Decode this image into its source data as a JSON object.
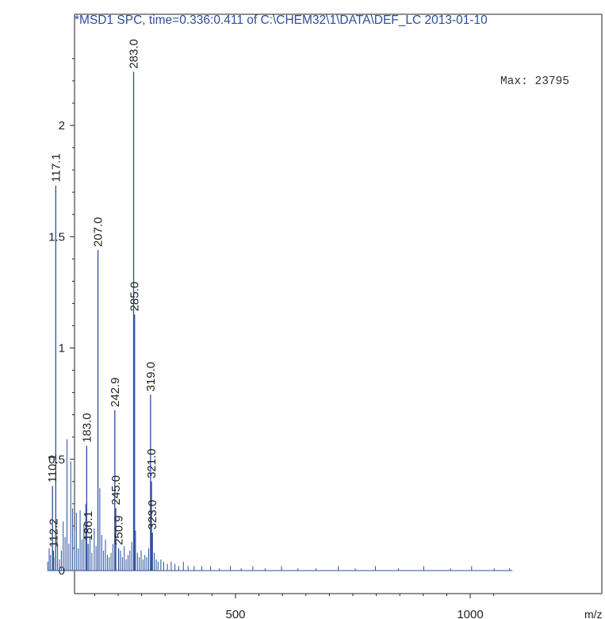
{
  "chart_data": {
    "type": "bar",
    "title": "*MSD1 SPC, time=0.336:0.411 of C:\\CHEM32\\1\\DATA\\DEF_LC 2013-01-10",
    "xlabel": "m/z",
    "ylabel": "",
    "max_label": "Max: 23795",
    "xlim": [
      0,
      1100
    ],
    "ylim": [
      -0.05,
      2.4
    ],
    "x_ticks": [
      500,
      1000
    ],
    "y_ticks": [
      0,
      0.5,
      1,
      1.5,
      2
    ],
    "grid": false,
    "colors": {
      "title": "#2a4f9c",
      "spectrum": "#2a4f9c",
      "axis": "#222222"
    },
    "peaks": [
      {
        "mz": 110.1,
        "value": 0.38,
        "label": "110.1"
      },
      {
        "mz": 112.2,
        "value": 0.09,
        "label": "112.2"
      },
      {
        "mz": 117.1,
        "value": 1.73,
        "label": "117.1"
      },
      {
        "mz": 183.0,
        "value": 0.56,
        "label": "183.0"
      },
      {
        "mz": 186.1,
        "value": 0.12,
        "label": "186.1"
      },
      {
        "mz": 207.0,
        "value": 1.44,
        "label": "207.0"
      },
      {
        "mz": 242.9,
        "value": 0.72,
        "label": "242.9"
      },
      {
        "mz": 245.0,
        "value": 0.28,
        "label": "245.0"
      },
      {
        "mz": 250.9,
        "value": 0.1,
        "label": "250.9"
      },
      {
        "mz": 283.0,
        "value": 2.24,
        "label": "283.0"
      },
      {
        "mz": 285.0,
        "value": 1.15,
        "label": "285.0"
      },
      {
        "mz": 319.0,
        "value": 0.79,
        "label": "319.0"
      },
      {
        "mz": 321.0,
        "value": 0.4,
        "label": "321.0"
      },
      {
        "mz": 323.0,
        "value": 0.17,
        "label": "323.0"
      }
    ],
    "minor_peaks": [
      {
        "mz": 100,
        "value": 0.04
      },
      {
        "mz": 103,
        "value": 0.1
      },
      {
        "mz": 106,
        "value": 0.07
      },
      {
        "mz": 113,
        "value": 0.06
      },
      {
        "mz": 121,
        "value": 0.12
      },
      {
        "mz": 125,
        "value": 0.05
      },
      {
        "mz": 129,
        "value": 0.09
      },
      {
        "mz": 133,
        "value": 0.22
      },
      {
        "mz": 137,
        "value": 0.15
      },
      {
        "mz": 141,
        "value": 0.59
      },
      {
        "mz": 145,
        "value": 0.12
      },
      {
        "mz": 149,
        "value": 0.49
      },
      {
        "mz": 153,
        "value": 0.28
      },
      {
        "mz": 157,
        "value": 0.18
      },
      {
        "mz": 161,
        "value": 0.26
      },
      {
        "mz": 165,
        "value": 0.1
      },
      {
        "mz": 169,
        "value": 0.27
      },
      {
        "mz": 173,
        "value": 0.14
      },
      {
        "mz": 177,
        "value": 0.21
      },
      {
        "mz": 181,
        "value": 0.3
      },
      {
        "mz": 190,
        "value": 0.15
      },
      {
        "mz": 194,
        "value": 0.08
      },
      {
        "mz": 199,
        "value": 0.19
      },
      {
        "mz": 203,
        "value": 0.11
      },
      {
        "mz": 211,
        "value": 0.37
      },
      {
        "mz": 215,
        "value": 0.16
      },
      {
        "mz": 219,
        "value": 0.09
      },
      {
        "mz": 223,
        "value": 0.14
      },
      {
        "mz": 227,
        "value": 0.07
      },
      {
        "mz": 231,
        "value": 0.06
      },
      {
        "mz": 235,
        "value": 0.08
      },
      {
        "mz": 239,
        "value": 0.12
      },
      {
        "mz": 255,
        "value": 0.09
      },
      {
        "mz": 259,
        "value": 0.06
      },
      {
        "mz": 263,
        "value": 0.11
      },
      {
        "mz": 267,
        "value": 0.05
      },
      {
        "mz": 271,
        "value": 0.07
      },
      {
        "mz": 275,
        "value": 0.09
      },
      {
        "mz": 279,
        "value": 0.13
      },
      {
        "mz": 287,
        "value": 0.18
      },
      {
        "mz": 291,
        "value": 0.08
      },
      {
        "mz": 295,
        "value": 0.06
      },
      {
        "mz": 299,
        "value": 0.09
      },
      {
        "mz": 303,
        "value": 0.05
      },
      {
        "mz": 307,
        "value": 0.07
      },
      {
        "mz": 311,
        "value": 0.06
      },
      {
        "mz": 315,
        "value": 0.1
      },
      {
        "mz": 327,
        "value": 0.08
      },
      {
        "mz": 331,
        "value": 0.05
      },
      {
        "mz": 335,
        "value": 0.04
      },
      {
        "mz": 341,
        "value": 0.05
      },
      {
        "mz": 347,
        "value": 0.04
      },
      {
        "mz": 355,
        "value": 0.03
      },
      {
        "mz": 363,
        "value": 0.04
      },
      {
        "mz": 371,
        "value": 0.03
      },
      {
        "mz": 379,
        "value": 0.02
      },
      {
        "mz": 389,
        "value": 0.04
      },
      {
        "mz": 399,
        "value": 0.02
      },
      {
        "mz": 412,
        "value": 0.02
      },
      {
        "mz": 428,
        "value": 0.02
      },
      {
        "mz": 447,
        "value": 0.02
      },
      {
        "mz": 466,
        "value": 0.01
      },
      {
        "mz": 489,
        "value": 0.02
      },
      {
        "mz": 512,
        "value": 0.01
      },
      {
        "mz": 537,
        "value": 0.02
      },
      {
        "mz": 563,
        "value": 0.01
      },
      {
        "mz": 598,
        "value": 0.02
      },
      {
        "mz": 633,
        "value": 0.01
      },
      {
        "mz": 671,
        "value": 0.01
      },
      {
        "mz": 719,
        "value": 0.02
      },
      {
        "mz": 755,
        "value": 0.01
      },
      {
        "mz": 798,
        "value": 0.02
      },
      {
        "mz": 847,
        "value": 0.01
      },
      {
        "mz": 901,
        "value": 0.02
      },
      {
        "mz": 958,
        "value": 0.01
      },
      {
        "mz": 1003,
        "value": 0.02
      },
      {
        "mz": 1051,
        "value": 0.01
      },
      {
        "mz": 1084,
        "value": 0.01
      }
    ]
  }
}
